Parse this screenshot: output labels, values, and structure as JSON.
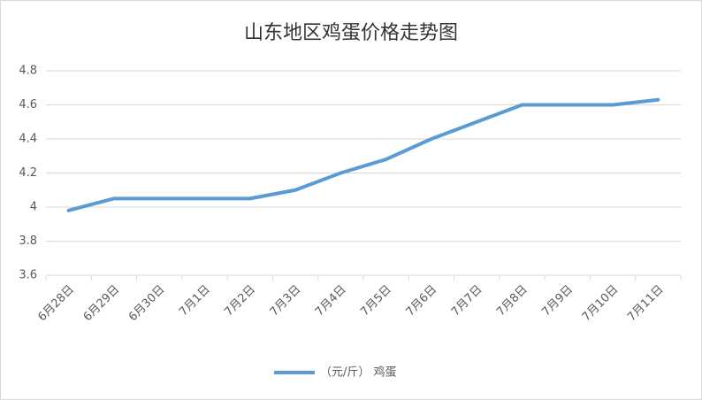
{
  "chart_data": {
    "type": "line",
    "title": "山东地区鸡蛋价格走势图",
    "categories": [
      "6月28日",
      "6月29日",
      "6月30日",
      "7月1日",
      "7月2日",
      "7月3日",
      "7月4日",
      "7月5日",
      "7月6日",
      "7月7日",
      "7月8日",
      "7月9日",
      "7月10日",
      "7月11日"
    ],
    "series": [
      {
        "name": "（元/斤） 鸡蛋",
        "color": "#5b9bd5",
        "values": [
          3.98,
          4.05,
          4.05,
          4.05,
          4.05,
          4.1,
          4.2,
          4.28,
          4.4,
          4.5,
          4.6,
          4.6,
          4.6,
          4.63
        ]
      }
    ],
    "ylim": [
      3.6,
      4.8
    ],
    "yticks": [
      3.6,
      3.8,
      4,
      4.2,
      4.4,
      4.6,
      4.8
    ],
    "grid": true,
    "legend": "bottom"
  }
}
